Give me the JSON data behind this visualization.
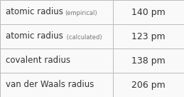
{
  "rows": [
    {
      "label": "atomic radius",
      "sublabel": "(empirical)",
      "value": "140 pm"
    },
    {
      "label": "atomic radius",
      "sublabel": " (calculated)",
      "value": "123 pm"
    },
    {
      "label": "covalent radius",
      "sublabel": "",
      "value": "138 pm"
    },
    {
      "label": "van der Waals radius",
      "sublabel": "",
      "value": "206 pm"
    }
  ],
  "col_split": 0.615,
  "background_color": "#f9f9f9",
  "border_color": "#bbbbbb",
  "text_color": "#333333",
  "sublabel_color": "#777777",
  "label_fontsize": 8.5,
  "sublabel_fontsize": 6.0,
  "value_fontsize": 9.0
}
